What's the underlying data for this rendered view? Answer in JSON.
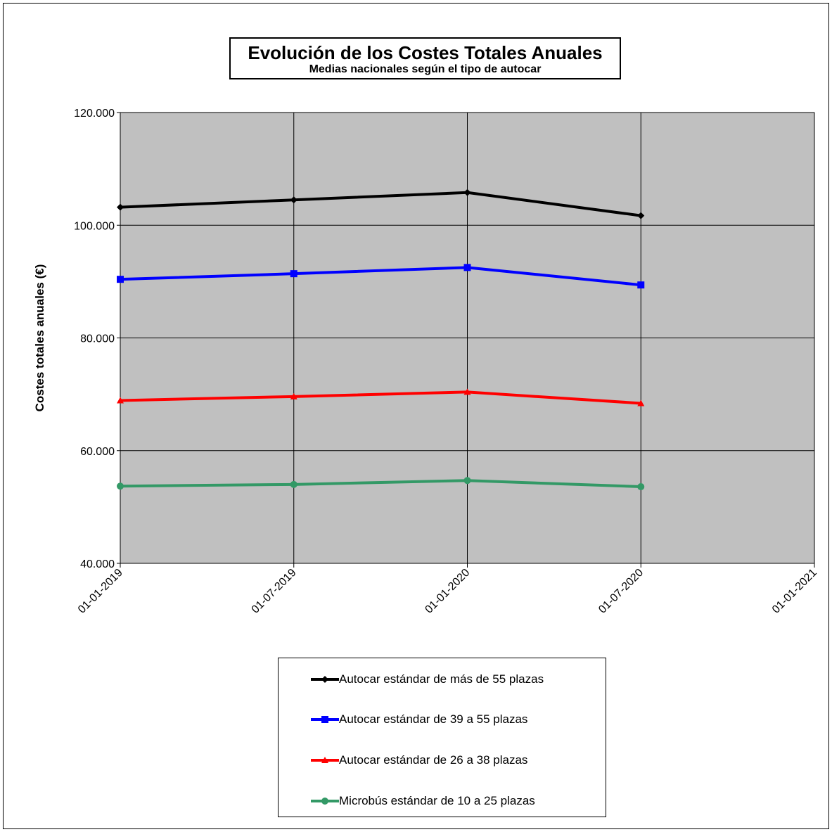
{
  "chart_data": {
    "type": "line",
    "title": "Evolución de los Costes Totales Anuales",
    "subtitle": "Medias nacionales según el tipo de autocar",
    "xlabel": "",
    "ylabel": "Costes totales anuales (€)",
    "x": [
      "01-01-2019",
      "01-07-2019",
      "01-01-2020",
      "01-07-2020"
    ],
    "xticks": [
      "01-01-2019",
      "01-07-2019",
      "01-01-2020",
      "01-07-2020",
      "01-01-2021"
    ],
    "yticks": [
      "40.000",
      "60.000",
      "80.000",
      "100.000",
      "120.000"
    ],
    "ylim": [
      40000,
      120000
    ],
    "grid": true,
    "legend_position": "bottom",
    "plot_background": "#c0c0c0",
    "series": [
      {
        "name": "Autocar estándar de más de 55 plazas",
        "color": "#000000",
        "marker": "diamond",
        "values": [
          103200,
          104500,
          105800,
          101700
        ]
      },
      {
        "name": "Autocar estándar de 39 a 55 plazas",
        "color": "#0000ff",
        "marker": "square",
        "values": [
          90400,
          91400,
          92500,
          89400
        ]
      },
      {
        "name": "Autocar estándar de 26 a 38 plazas",
        "color": "#ff0000",
        "marker": "triangle",
        "values": [
          68900,
          69600,
          70400,
          68400
        ]
      },
      {
        "name": "Microbús estándar de 10 a 25 plazas",
        "color": "#339966",
        "marker": "circle",
        "values": [
          53700,
          54000,
          54700,
          53600
        ]
      }
    ]
  }
}
